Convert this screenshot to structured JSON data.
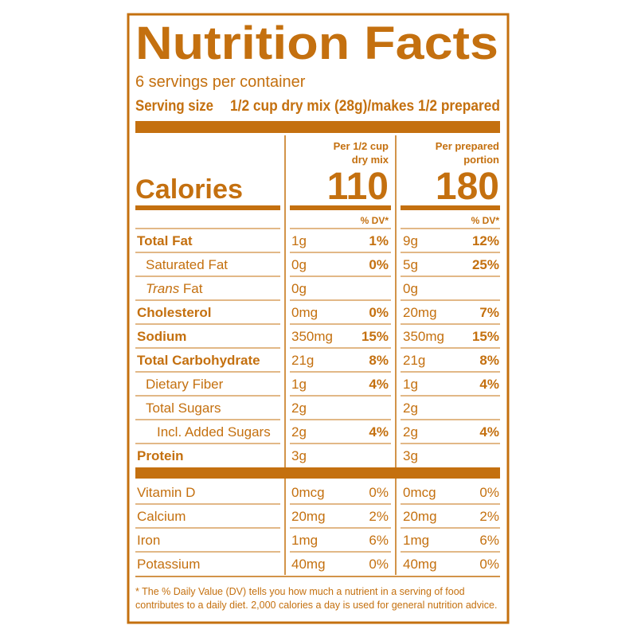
{
  "header": {
    "title": "Nutrition Facts",
    "servings": "6 servings per container",
    "serving_size_label": "Serving size",
    "serving_size": "1/2 cup dry mix (28g)/makes 1/2 prepared"
  },
  "columns": [
    {
      "heading": [
        "Per 1/2 cup",
        "dry mix"
      ],
      "calories": 110,
      "dv_heading": "% DV*"
    },
    {
      "heading": [
        "Per prepared",
        "portion"
      ],
      "calories": 180,
      "dv_heading": "% DV*"
    }
  ],
  "calories_label": "Calories",
  "nutrients": [
    {
      "name": "Total Fat",
      "bold": true,
      "indent": 0,
      "amounts": [
        "1g",
        "9g"
      ],
      "dv": [
        "1%",
        "12%"
      ]
    },
    {
      "name": "Saturated Fat",
      "bold": false,
      "indent": 1,
      "amounts": [
        "0g",
        "5g"
      ],
      "dv": [
        "0%",
        "25%"
      ]
    },
    {
      "name_italic": "Trans",
      "name": " Fat",
      "bold": false,
      "indent": 1,
      "amounts": [
        "0g",
        "0g"
      ],
      "dv": [
        null,
        null
      ]
    },
    {
      "name": "Cholesterol",
      "bold": true,
      "indent": 0,
      "amounts": [
        "0mg",
        "20mg"
      ],
      "dv": [
        "0%",
        "7%"
      ]
    },
    {
      "name": "Sodium",
      "bold": true,
      "indent": 0,
      "amounts": [
        "350mg",
        "350mg"
      ],
      "dv": [
        "15%",
        "15%"
      ]
    },
    {
      "name": "Total Carbohydrate",
      "bold": true,
      "indent": 0,
      "amounts": [
        "21g",
        "21g"
      ],
      "dv": [
        "8%",
        "8%"
      ]
    },
    {
      "name": "Dietary Fiber",
      "bold": false,
      "indent": 1,
      "amounts": [
        "1g",
        "1g"
      ],
      "dv": [
        "4%",
        "4%"
      ]
    },
    {
      "name": "Total Sugars",
      "bold": false,
      "indent": 1,
      "amounts": [
        "2g",
        "2g"
      ],
      "dv": [
        null,
        null
      ]
    },
    {
      "name": "Incl. Added Sugars",
      "bold": false,
      "indent": 2,
      "amounts": [
        "2g",
        "2g"
      ],
      "dv": [
        "4%",
        "4%"
      ]
    },
    {
      "name": "Protein",
      "bold": true,
      "indent": 0,
      "amounts": [
        "3g",
        "3g"
      ],
      "dv": [
        null,
        null
      ]
    }
  ],
  "vitamins": [
    {
      "name": "Vitamin D",
      "amounts": [
        "0mcg",
        "0mcg"
      ],
      "dv": [
        "0%",
        "0%"
      ]
    },
    {
      "name": "Calcium",
      "amounts": [
        "20mg",
        "20mg"
      ],
      "dv": [
        "2%",
        "2%"
      ]
    },
    {
      "name": "Iron",
      "amounts": [
        "1mg",
        "1mg"
      ],
      "dv": [
        "6%",
        "6%"
      ]
    },
    {
      "name": "Potassium",
      "amounts": [
        "40mg",
        "40mg"
      ],
      "dv": [
        "0%",
        "0%"
      ]
    }
  ],
  "footnote": [
    "* The % Daily Value (DV) tells you how much a nutrient in a serving of food",
    "contributes to a daily diet. 2,000 calories a day is used for general nutrition advice."
  ]
}
